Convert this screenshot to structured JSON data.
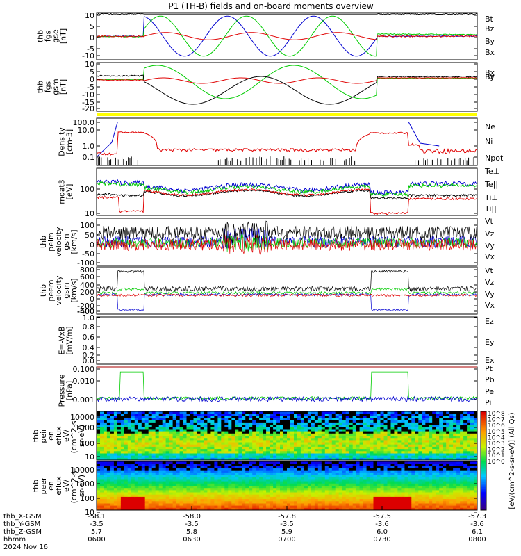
{
  "title": "P1 (TH-B) fields and on-board moments overview",
  "colors": {
    "black": "#000000",
    "red": "#e00000",
    "green": "#00cc00",
    "blue": "#0000d0",
    "yellow": "#ffff00"
  },
  "chart_data": [
    {
      "type": "line",
      "panel": 1,
      "ylabel": [
        "thb",
        "fgs",
        "gse",
        "[nT]"
      ],
      "yticks": [
        "10",
        "5",
        "0",
        "-5",
        "-10"
      ],
      "ylim": [
        -13,
        13
      ],
      "series": [
        {
          "name": "Bt",
          "color": "black"
        },
        {
          "name": "Bz",
          "color": "red"
        },
        {
          "name": "By",
          "color": "green"
        },
        {
          "name": "Bx",
          "color": "blue"
        }
      ]
    },
    {
      "type": "line",
      "panel": 2,
      "ylabel": [
        "thb",
        "fgs",
        "gsm",
        "[nT]"
      ],
      "yticks": [
        "10",
        "5",
        "0",
        "-5",
        "-10",
        "-15",
        "-20"
      ],
      "ylim": [
        -23,
        12
      ],
      "series": [
        {
          "name": "Bx",
          "color": "black"
        },
        {
          "name": "Bz",
          "color": "red"
        },
        {
          "name": "By",
          "color": "green"
        }
      ]
    },
    {
      "type": "line",
      "panel": 3,
      "ylabel": [
        "Density",
        "[cm-3]"
      ],
      "yticks": [
        "100.0",
        "10.0",
        "1.0",
        "0.1"
      ],
      "scale": "log",
      "series": [
        {
          "name": "Ne",
          "color": "red"
        },
        {
          "name": "Ni",
          "color": "black"
        },
        {
          "name": "Npot",
          "color": "blue"
        }
      ]
    },
    {
      "type": "line",
      "panel": 4,
      "ylabel": [
        "moat3",
        "[eV]"
      ],
      "yticks": [
        "100",
        "10"
      ],
      "scale": "log",
      "series": [
        {
          "name": "Te⊥",
          "color": "red"
        },
        {
          "name": "Te||",
          "color": "black"
        },
        {
          "name": "Ti⊥",
          "color": "red"
        },
        {
          "name": "Ti||",
          "color": "green"
        }
      ]
    },
    {
      "type": "line",
      "panel": 5,
      "ylabel": [
        "thb",
        "peim",
        "velocity",
        "gsm",
        "[km/s]"
      ],
      "yticks": [
        "100",
        "50",
        "0",
        "-50",
        "-100"
      ],
      "ylim": [
        -120,
        120
      ],
      "series": [
        {
          "name": "Vt",
          "color": "black"
        },
        {
          "name": "Vz",
          "color": "red"
        },
        {
          "name": "Vy",
          "color": "green"
        },
        {
          "name": "Vx",
          "color": "blue"
        }
      ]
    },
    {
      "type": "line",
      "panel": 6,
      "ylabel": [
        "thb",
        "peem",
        "velocity",
        "gsm",
        "[km/s]"
      ],
      "yticks": [
        "800",
        "600",
        "400",
        "200",
        "0",
        "-200",
        "-400",
        "-600"
      ],
      "ylim": [
        -700,
        850
      ],
      "series": [
        {
          "name": "Vt",
          "color": "black"
        },
        {
          "name": "Vz",
          "color": "red"
        },
        {
          "name": "Vy",
          "color": "green"
        },
        {
          "name": "Vx",
          "color": "blue"
        }
      ]
    },
    {
      "type": "line",
      "panel": 7,
      "ylabel": [
        "E=-VxB",
        "[mV/m]"
      ],
      "yticks": [
        "1.0",
        "0.8",
        "0.6",
        "0.4",
        "0.2",
        "0.0"
      ],
      "ylim": [
        -0.05,
        1.0
      ],
      "series": [
        {
          "name": "Ez",
          "color": "red"
        },
        {
          "name": "Ey",
          "color": "green"
        },
        {
          "name": "Ex",
          "color": "blue"
        }
      ]
    },
    {
      "type": "line",
      "panel": 8,
      "ylabel": [
        "Pressure",
        "[nPa]"
      ],
      "yticks": [
        "0.100",
        "0.010",
        "0.001"
      ],
      "scale": "log",
      "series": [
        {
          "name": "Pt",
          "color": "black"
        },
        {
          "name": "Pb",
          "color": "red"
        },
        {
          "name": "Pe",
          "color": "green"
        },
        {
          "name": "Pi",
          "color": "blue"
        }
      ]
    },
    {
      "type": "heatmap",
      "panel": 9,
      "ylabel": [
        "thb",
        "peir",
        "en",
        "eflux",
        "eV/",
        "(cm^2-s-",
        "sr-eV)"
      ],
      "yticks": [
        "10000",
        "1000",
        "100",
        "10"
      ],
      "scale": "log"
    },
    {
      "type": "heatmap",
      "panel": 10,
      "ylabel": [
        "thb",
        "peer",
        "en",
        "eflux",
        "eV/",
        "(cm^2-s-",
        "sr-eV)"
      ],
      "yticks": [
        "10000",
        "1000",
        "100",
        "10"
      ],
      "scale": "log"
    }
  ],
  "colorbar": {
    "label": "[eV/(cm^2-s-sr-eV)] (All Qs)",
    "ticks": [
      "10^8",
      "10^7",
      "10^6",
      "10^5",
      "10^4",
      "10^3",
      "10^2",
      "10^1",
      "10^0"
    ]
  },
  "xaxis": {
    "row_labels": [
      "thb_X-GSM",
      "thb_Y-GSM",
      "thb_Z-GSM",
      "hhmm",
      "2024 Nov 16"
    ],
    "x_gsm": [
      "-58.1",
      "-58.0",
      "-57.8",
      "-57.5",
      "-57.3"
    ],
    "y_gsm": [
      "-3.5",
      "-3.5",
      "-3.5",
      "-3.6",
      "-3.6"
    ],
    "z_gsm": [
      "5.7",
      "5.8",
      "5.9",
      "6.0",
      "6.1"
    ],
    "hhmm": [
      "0600",
      "0630",
      "0700",
      "0730",
      "0800"
    ]
  }
}
